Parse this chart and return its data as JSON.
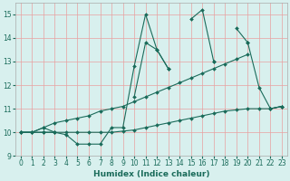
{
  "xlabel": "Humidex (Indice chaleur)",
  "x": [
    0,
    1,
    2,
    3,
    4,
    5,
    6,
    7,
    8,
    9,
    10,
    11,
    12,
    13,
    14,
    15,
    16,
    17,
    18,
    19,
    20,
    21,
    22,
    23
  ],
  "line1": [
    10.0,
    10.0,
    10.0,
    10.0,
    9.9,
    9.5,
    9.5,
    9.5,
    10.2,
    10.2,
    12.8,
    15.0,
    13.5,
    12.7,
    null,
    14.8,
    15.2,
    13.0,
    null,
    14.4,
    13.8,
    11.9,
    11.0,
    11.1
  ],
  "line2": [
    10.0,
    10.0,
    10.2,
    10.0,
    null,
    null,
    null,
    null,
    null,
    null,
    11.5,
    13.8,
    13.5,
    12.7,
    null,
    null,
    null,
    13.0,
    null,
    null,
    13.8,
    null,
    11.0,
    11.1
  ],
  "line3": [
    10.0,
    10.0,
    10.2,
    10.4,
    10.5,
    10.6,
    10.7,
    10.9,
    11.0,
    11.1,
    11.3,
    11.5,
    11.7,
    11.9,
    12.1,
    12.3,
    12.5,
    12.7,
    12.9,
    13.1,
    13.3,
    null,
    null,
    null
  ],
  "line4": [
    10.0,
    10.0,
    10.0,
    10.0,
    10.0,
    10.0,
    10.0,
    10.0,
    10.0,
    10.05,
    10.1,
    10.2,
    10.3,
    10.4,
    10.5,
    10.6,
    10.7,
    10.8,
    10.9,
    10.95,
    11.0,
    11.0,
    11.0,
    11.1
  ],
  "line_color": "#1a6b5a",
  "bg_color": "#d8f0ee",
  "grid_color": "#e8a0a0",
  "ylim": [
    9.0,
    15.5
  ],
  "xlim": [
    -0.5,
    23.5
  ],
  "yticks": [
    9,
    10,
    11,
    12,
    13,
    14,
    15
  ],
  "xticks": [
    0,
    1,
    2,
    3,
    4,
    5,
    6,
    7,
    8,
    9,
    10,
    11,
    12,
    13,
    14,
    15,
    16,
    17,
    18,
    19,
    20,
    21,
    22,
    23
  ]
}
